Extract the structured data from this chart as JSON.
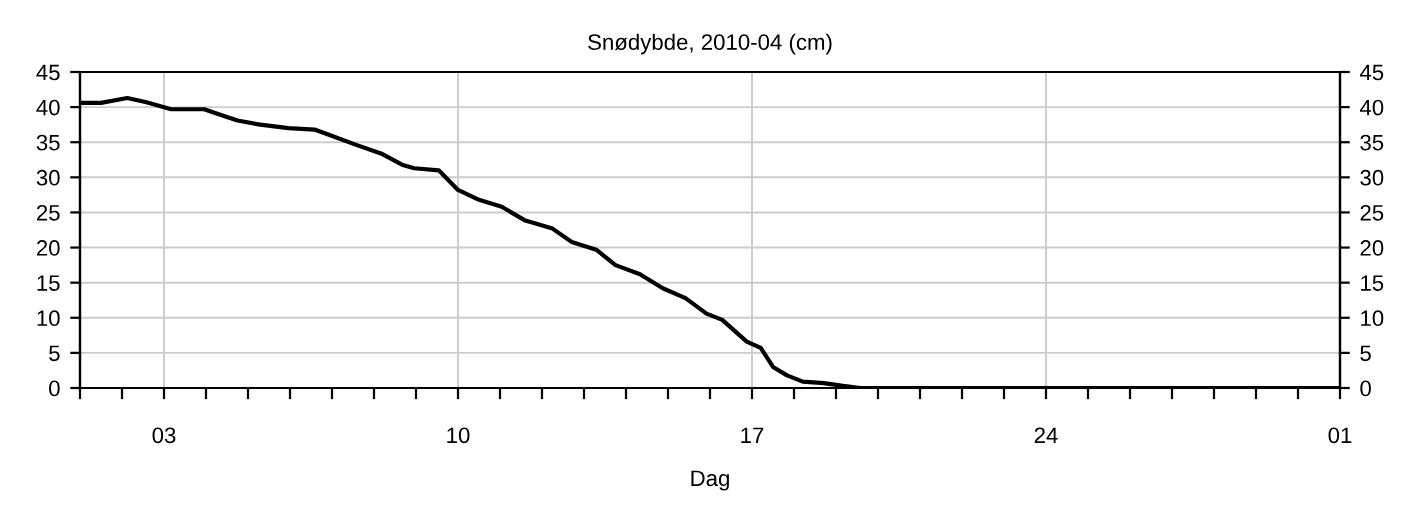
{
  "chart_data": {
    "type": "line",
    "title": "Snødybde, 2010-04 (cm)",
    "xlabel": "Dag",
    "x": [
      "2010-04-01T01:00",
      "2010-04-01T12:00",
      "2010-04-02T03:00",
      "2010-04-02T14:00",
      "2010-04-03T04:00",
      "2010-04-03T23:00",
      "2010-04-04T06:00",
      "2010-04-04T18:00",
      "2010-04-05T07:00",
      "2010-04-05T23:00",
      "2010-04-06T14:00",
      "2010-04-06T23:00",
      "2010-04-07T13:00",
      "2010-04-08T04:00",
      "2010-04-08T16:00",
      "2010-04-08T23:00",
      "2010-04-09T13:00",
      "2010-04-10T00:00",
      "2010-04-10T12:00",
      "2010-04-11T01:00",
      "2010-04-11T14:00",
      "2010-04-12T06:00",
      "2010-04-12T17:00",
      "2010-04-13T07:00",
      "2010-04-13T18:00",
      "2010-04-14T08:00",
      "2010-04-14T21:00",
      "2010-04-15T10:00",
      "2010-04-15T22:00",
      "2010-04-16T07:00",
      "2010-04-16T21:00",
      "2010-04-17T05:00",
      "2010-04-17T12:00",
      "2010-04-17T20:00",
      "2010-04-18T05:00",
      "2010-04-18T17:00",
      "2010-04-19T04:00",
      "2010-04-19T14:00",
      "2010-05-01T00:00"
    ],
    "series": [
      {
        "color": "#000000",
        "values": [
          40.6,
          40.6,
          41.3,
          40.7,
          39.7,
          39.7,
          39.1,
          38.1,
          37.5,
          37.0,
          36.8,
          36.0,
          34.7,
          33.4,
          31.8,
          31.3,
          31.0,
          28.2,
          26.8,
          25.8,
          23.9,
          22.7,
          20.8,
          19.7,
          17.5,
          16.2,
          14.2,
          12.8,
          10.6,
          9.7,
          6.6,
          5.7,
          3.0,
          1.8,
          0.9,
          0.7,
          0.3,
          0,
          0
        ]
      }
    ],
    "xlim": [
      "2010-04-01",
      "2010-05-01"
    ],
    "xticks": [
      {
        "value": "2010-04-01",
        "label": null
      },
      {
        "value": "2010-04-02",
        "label": null
      },
      {
        "value": "2010-04-03",
        "label": "03"
      },
      {
        "value": "2010-04-04",
        "label": null
      },
      {
        "value": "2010-04-05",
        "label": null
      },
      {
        "value": "2010-04-06",
        "label": null
      },
      {
        "value": "2010-04-07",
        "label": null
      },
      {
        "value": "2010-04-08",
        "label": null
      },
      {
        "value": "2010-04-09",
        "label": null
      },
      {
        "value": "2010-04-10",
        "label": "10"
      },
      {
        "value": "2010-04-11",
        "label": null
      },
      {
        "value": "2010-04-12",
        "label": null
      },
      {
        "value": "2010-04-13",
        "label": null
      },
      {
        "value": "2010-04-14",
        "label": null
      },
      {
        "value": "2010-04-15",
        "label": null
      },
      {
        "value": "2010-04-16",
        "label": null
      },
      {
        "value": "2010-04-17",
        "label": "17"
      },
      {
        "value": "2010-04-18",
        "label": null
      },
      {
        "value": "2010-04-19",
        "label": null
      },
      {
        "value": "2010-04-20",
        "label": null
      },
      {
        "value": "2010-04-21",
        "label": null
      },
      {
        "value": "2010-04-22",
        "label": null
      },
      {
        "value": "2010-04-23",
        "label": null
      },
      {
        "value": "2010-04-24",
        "label": "24"
      },
      {
        "value": "2010-04-25",
        "label": null
      },
      {
        "value": "2010-04-26",
        "label": null
      },
      {
        "value": "2010-04-27",
        "label": null
      },
      {
        "value": "2010-04-28",
        "label": null
      },
      {
        "value": "2010-04-29",
        "label": null
      },
      {
        "value": "2010-04-30",
        "label": null
      },
      {
        "value": "2010-05-01",
        "label": "01"
      }
    ],
    "ylim": [
      0,
      45
    ],
    "yticks": [
      0,
      5,
      10,
      15,
      20,
      25,
      30,
      35,
      40,
      45
    ],
    "y2lim": [
      0,
      45
    ],
    "y2ticks": [
      0,
      5,
      10,
      15,
      20,
      25,
      30,
      35,
      40,
      45
    ],
    "grid": true,
    "marker": "none",
    "line_style": "solid",
    "legend": false
  }
}
